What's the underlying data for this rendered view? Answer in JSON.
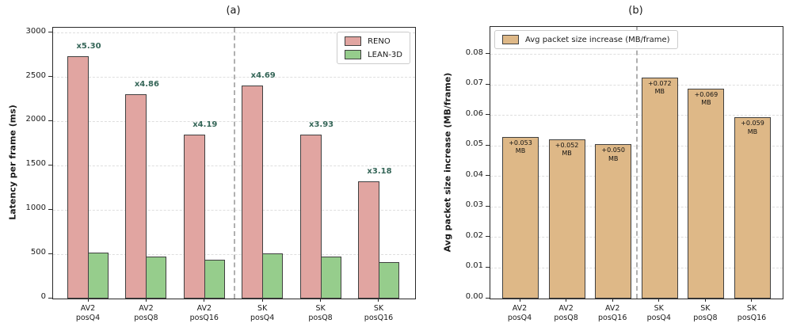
{
  "figure": {
    "background": "#ffffff",
    "panel_titles": [
      "(a)",
      "(b)"
    ]
  },
  "chart_data": [
    {
      "id": "a",
      "type": "bar",
      "title": "(a)",
      "ylabel": "Latency per frame (ms)",
      "categories": [
        "AV2\nposQ4",
        "AV2\nposQ8",
        "AV2\nposQ16",
        "SK\nposQ4",
        "SK\nposQ8",
        "SK\nposQ16"
      ],
      "series": [
        {
          "name": "RENO",
          "color": "#e1a5a1",
          "values": [
            2740,
            2305,
            1850,
            2405,
            1852,
            1320
          ]
        },
        {
          "name": "LEAN-3D",
          "color": "#96cd8c",
          "values": [
            517,
            474,
            441,
            513,
            471,
            415
          ]
        }
      ],
      "annotations": {
        "labels": [
          "x5.30",
          "x4.86",
          "x4.19",
          "x4.69",
          "x3.93",
          "x3.18"
        ],
        "color": "#356658"
      },
      "ylim": [
        0,
        3060
      ],
      "yticks": {
        "values": [
          0,
          500,
          1000,
          1500,
          2000,
          2500,
          3000
        ],
        "labels": [
          "0",
          "500",
          "1000",
          "1500",
          "2000",
          "2500",
          "3000"
        ]
      },
      "grid": true,
      "separator_between_groups": [
        2,
        3
      ],
      "legend": {
        "position": "top-right",
        "entries": [
          {
            "label": "RENO",
            "color": "#e1a5a1"
          },
          {
            "label": "LEAN-3D",
            "color": "#96cd8c"
          }
        ]
      }
    },
    {
      "id": "b",
      "type": "bar",
      "title": "(b)",
      "ylabel": "Avg packet size increase (MB/frame)",
      "categories": [
        "AV2\nposQ4",
        "AV2\nposQ8",
        "AV2\nposQ16",
        "SK\nposQ4",
        "SK\nposQ8",
        "SK\nposQ16"
      ],
      "series": [
        {
          "name": "Avg packet size increase (MB/frame)",
          "color": "#deb887",
          "values": [
            0.053,
            0.0522,
            0.0505,
            0.0724,
            0.0688,
            0.0593
          ]
        }
      ],
      "bar_labels": [
        "+0.053\nMB",
        "+0.052\nMB",
        "+0.050\nMB",
        "+0.072\nMB",
        "+0.069\nMB",
        "+0.059\nMB"
      ],
      "ylim": [
        0,
        0.089
      ],
      "yticks": {
        "values": [
          0,
          0.01,
          0.02,
          0.03,
          0.04,
          0.05,
          0.06,
          0.07,
          0.08
        ],
        "labels": [
          "0.00",
          "0.01",
          "0.02",
          "0.03",
          "0.04",
          "0.05",
          "0.06",
          "0.07",
          "0.08"
        ]
      },
      "grid": true,
      "separator_between_groups": [
        2,
        3
      ],
      "legend": {
        "position": "top-left",
        "entries": [
          {
            "label": "Avg packet size increase (MB/frame)",
            "color": "#deb887"
          }
        ]
      }
    }
  ]
}
